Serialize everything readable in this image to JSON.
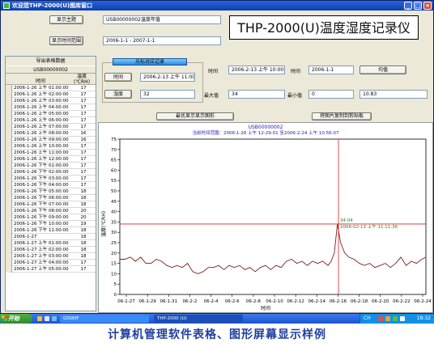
{
  "window": {
    "title": "欢迎您THP-2000(U)图库窗口",
    "btn_min": "_",
    "btn_max": "□",
    "btn_close": "×"
  },
  "header": {
    "show_title_btn": "显示主题",
    "show_title_value": "USB00000002温度年值",
    "show_range_btn": "显示时间范围",
    "show_range_value": "2006-1-1 - 2007-1-1",
    "app_title": "THP-2000(U)温度湿度记录仪"
  },
  "table": {
    "caption": "导出表格数据",
    "serial": "USB00000002",
    "col_time": "时间",
    "col_hum": "温度(℃RH)",
    "rows": [
      {
        "time": "2006-1-26 上午 01:00:00",
        "val": "17"
      },
      {
        "time": "2006-1-26 上午 02:00:00",
        "val": "17"
      },
      {
        "time": "2006-1-26 上午 03:00:00",
        "val": "17"
      },
      {
        "time": "2006-1-26 上午 04:00:00",
        "val": "17"
      },
      {
        "time": "2006-1-26 上午 05:00:00",
        "val": "17"
      },
      {
        "time": "2006-1-26 上午 06:00:00",
        "val": "17"
      },
      {
        "time": "2006-1-26 上午 07:00:00",
        "val": "17"
      },
      {
        "time": "2006-1-26 上午 08:00:00",
        "val": "16"
      },
      {
        "time": "2006-1-26 上午 09:00:00",
        "val": "16"
      },
      {
        "time": "2006-1-26 上午 10:00:00",
        "val": "17"
      },
      {
        "time": "2006-1-26 上午 11:00:00",
        "val": "17"
      },
      {
        "time": "2006-1-26 上午 12:00:00",
        "val": "17"
      },
      {
        "time": "2006-1-26 下午 01:00:00",
        "val": "17"
      },
      {
        "time": "2006-1-26 下午 02:00:00",
        "val": "17"
      },
      {
        "time": "2006-1-26 下午 03:00:00",
        "val": "17"
      },
      {
        "time": "2006-1-26 下午 04:00:00",
        "val": "17"
      },
      {
        "time": "2006-1-26 下午 05:00:00",
        "val": "18"
      },
      {
        "time": "2006-1-26 下午 06:00:00",
        "val": "18"
      },
      {
        "time": "2006-1-26 下午 07:00:00",
        "val": "18"
      },
      {
        "time": "2006-1-26 下午 08:00:00",
        "val": "20"
      },
      {
        "time": "2006-1-26 下午 09:00:00",
        "val": "20"
      },
      {
        "time": "2006-1-26 下午 10:00:00",
        "val": "19"
      },
      {
        "time": "2006-1-26 下午 11:00:00",
        "val": "18"
      },
      {
        "time": "2006-1-27",
        "val": "18"
      },
      {
        "time": "2006-1-27 上午 01:00:00",
        "val": "18"
      },
      {
        "time": "2006-1-27 上午 02:00:00",
        "val": "18"
      },
      {
        "time": "2006-1-27 上午 03:00:00",
        "val": "18"
      },
      {
        "time": "2006-1-27 上午 04:00:00",
        "val": "17"
      },
      {
        "time": "2006-1-27 上午 05:00:00",
        "val": "17"
      }
    ]
  },
  "cursor_panel": {
    "group_title": "光标对应记录",
    "time_btn": "时间",
    "time_value": "2006-2-13 上午 11:00:00",
    "temp_btn": "湿度",
    "temp_value": "32"
  },
  "stats": {
    "time_label_1": "时间",
    "time_value_1": "2006-2-13 上午 10:00:00",
    "time_label_2": "时间",
    "time_value_2": "2006-1-1",
    "avg_btn": "均值",
    "max_label": "最大值",
    "max_value": "34",
    "min_label": "最小值",
    "min_value": "0",
    "avg_value": "10.83"
  },
  "chart_buttons": {
    "best_fit": "最优显示显示图形",
    "copy_clipboard": "将图片复制到剪贴板"
  },
  "chart_data": {
    "type": "line",
    "title": "USB00000002",
    "subtitle": "当前时间范围：2006-1-26 上午 12:29:01 至2006-2-24 上午 10:56:07",
    "xlabel": "时间",
    "ylabel": "温度(℃RH)",
    "ylim": [
      0,
      75
    ],
    "yticks": [
      0,
      5,
      10,
      15,
      20,
      25,
      30,
      35,
      40,
      45,
      50,
      55,
      60,
      65,
      70,
      75
    ],
    "xticks": [
      "06-1-27",
      "06-1-29",
      "06-1-31",
      "06-2-2",
      "06-2-4",
      "06-2-6",
      "06-2-8",
      "06-2-10",
      "06-2-12",
      "06-2-14",
      "06-2-16",
      "06-2-18",
      "06-2-20",
      "06-2-22",
      "06-2-24"
    ],
    "x_range_days": [
      0,
      29.4
    ],
    "series": [
      {
        "name": "",
        "color": "#7a1f1f",
        "points": [
          [
            0,
            17
          ],
          [
            0.5,
            17
          ],
          [
            1,
            18
          ],
          [
            1.5,
            16
          ],
          [
            2,
            18
          ],
          [
            2.5,
            15
          ],
          [
            3,
            15
          ],
          [
            3.5,
            17
          ],
          [
            4,
            16
          ],
          [
            4.5,
            14
          ],
          [
            5,
            13
          ],
          [
            5.5,
            14
          ],
          [
            6,
            13
          ],
          [
            6.5,
            15
          ],
          [
            7,
            11
          ],
          [
            7.5,
            10
          ],
          [
            8,
            11
          ],
          [
            8.5,
            13
          ],
          [
            9,
            13
          ],
          [
            9.5,
            14
          ],
          [
            10,
            12
          ],
          [
            10.5,
            14
          ],
          [
            11,
            13
          ],
          [
            11.5,
            14
          ],
          [
            12,
            12
          ],
          [
            12.5,
            13
          ],
          [
            13,
            11
          ],
          [
            13.5,
            13
          ],
          [
            14,
            14
          ],
          [
            14.5,
            12
          ],
          [
            15,
            14
          ],
          [
            15.5,
            13
          ],
          [
            16,
            16
          ],
          [
            16.5,
            17
          ],
          [
            17,
            15
          ],
          [
            17.5,
            16
          ],
          [
            18,
            14
          ],
          [
            18.5,
            16
          ],
          [
            19,
            15
          ],
          [
            19.5,
            16
          ],
          [
            20,
            14
          ],
          [
            20.3,
            16
          ],
          [
            20.6,
            20
          ],
          [
            20.9,
            34
          ],
          [
            21.2,
            25
          ],
          [
            21.6,
            20
          ],
          [
            22,
            18
          ],
          [
            22.5,
            17
          ],
          [
            23,
            15
          ],
          [
            23.5,
            14
          ],
          [
            24,
            15
          ],
          [
            24.5,
            13
          ],
          [
            25,
            14
          ],
          [
            25.5,
            15
          ],
          [
            26,
            13
          ],
          [
            26.5,
            15
          ],
          [
            27,
            18
          ],
          [
            27.5,
            14
          ],
          [
            28,
            16
          ],
          [
            28.5,
            15
          ],
          [
            29,
            17
          ],
          [
            29.4,
            18
          ]
        ]
      }
    ],
    "cursor": {
      "x": 21,
      "y": 34,
      "label_value": "34.04",
      "label_time": "2006-02-13 上午 11:11:36"
    },
    "grid": false
  },
  "taskbar": {
    "start": "开始",
    "task1": "GISWIF",
    "task2": "THP-2000 (U)",
    "lang": "CH",
    "clock": "18:32"
  },
  "footer_caption": "计算机管理软件表格、图形屏幕显示样例"
}
